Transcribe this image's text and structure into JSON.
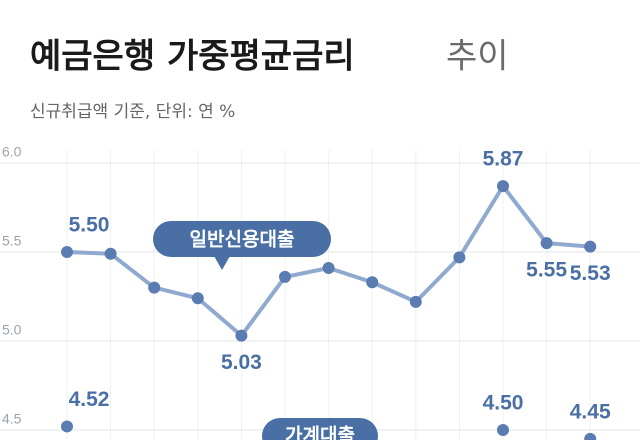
{
  "chart_data": {
    "type": "line",
    "title": "예금은행 가중평균금리",
    "title_suffix": "추이",
    "subtitle": "신규취급액 기준, 단위: 연 %",
    "categories": [
      null,
      null,
      null,
      null,
      null,
      null,
      null,
      null,
      null,
      null,
      null,
      null,
      null
    ],
    "series": [
      {
        "name": "일반신용대출",
        "color": "#8fa9cf",
        "values": [
          5.5,
          5.49,
          5.3,
          5.24,
          5.03,
          5.36,
          5.41,
          5.33,
          5.22,
          5.47,
          5.87,
          5.55,
          5.53
        ],
        "value_labels": [
          "5.50",
          null,
          null,
          null,
          "5.03",
          null,
          null,
          null,
          null,
          null,
          "5.87",
          "5.55",
          "5.53"
        ]
      },
      {
        "name": "가계대출",
        "color": "#8fa9cf",
        "values": [
          4.52,
          null,
          null,
          null,
          null,
          null,
          null,
          null,
          null,
          null,
          4.5,
          null,
          4.45
        ],
        "value_labels": [
          "4.52",
          null,
          null,
          null,
          null,
          null,
          null,
          null,
          null,
          null,
          "4.50",
          null,
          "4.45"
        ]
      }
    ],
    "ylim": [
      4.5,
      6.0
    ],
    "yticks": [
      {
        "value": 6.0,
        "label": "6.0"
      },
      {
        "value": 5.5,
        "label": "5.5"
      },
      {
        "value": 5.0,
        "label": "5.0"
      },
      {
        "value": 4.5,
        "label": "4.5"
      }
    ],
    "grid": true
  }
}
